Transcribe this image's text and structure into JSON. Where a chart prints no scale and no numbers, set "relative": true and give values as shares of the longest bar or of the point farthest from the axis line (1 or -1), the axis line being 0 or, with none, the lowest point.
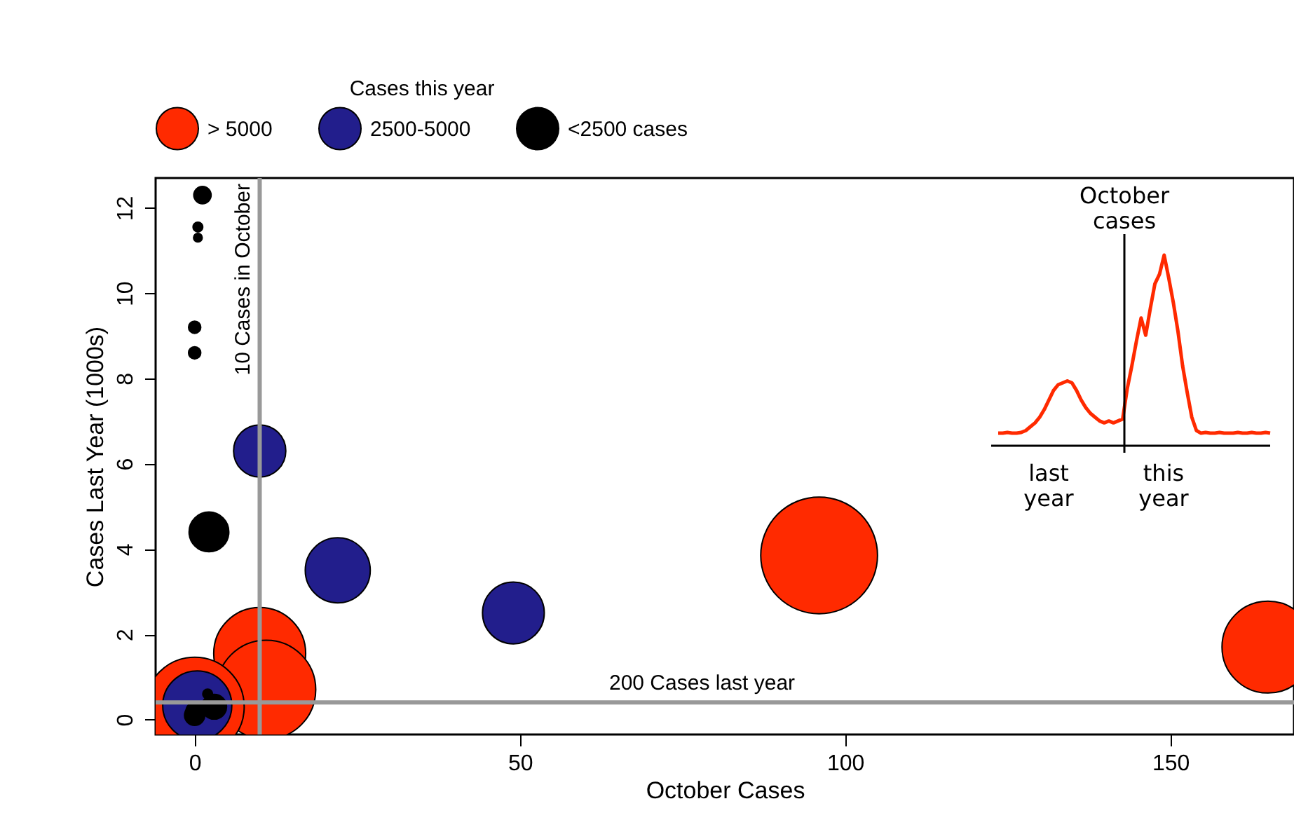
{
  "chart_data": [
    {
      "type": "bubble",
      "xlabel": "October Cases",
      "ylabel": "Cases Last Year (1000s)",
      "legend_title": "Cases this year",
      "legend": "top",
      "grid": false,
      "xlim": [
        -6,
        169
      ],
      "ylim": [
        -0.35,
        12.7
      ],
      "xticks": [
        0,
        50,
        100,
        150
      ],
      "yticks": [
        0,
        2,
        4,
        6,
        8,
        10,
        12
      ],
      "ref_lines": [
        {
          "axis": "x",
          "value": 10,
          "label": "10 Cases in October",
          "color": "#999999"
        },
        {
          "axis": "y",
          "value": 0.4,
          "label": "200 Cases last year",
          "color": "#999999"
        }
      ],
      "series": [
        {
          "name": "> 5000",
          "color": "#ff2a00",
          "x": [
            96,
            165,
            10,
            11,
            0
          ],
          "values": [
            3.85,
            1.7,
            1.55,
            0.7,
            0.3
          ],
          "sizes": [
            1,
            0.62,
            0.62,
            0.72,
            0.72
          ]
        },
        {
          "name": "2500-5000",
          "color": "#221e8c",
          "x": [
            10,
            22,
            49,
            0.4
          ],
          "values": [
            6.3,
            3.5,
            2.5,
            0.33
          ],
          "sizes": [
            0.2,
            0.31,
            0.28,
            0.35
          ]
        },
        {
          "name": "<2500 cases",
          "color": "#000000",
          "x": [
            1.2,
            0.5,
            0.5,
            0,
            0,
            2.2,
            2,
            3,
            0,
            0
          ],
          "values": [
            12.3,
            11.55,
            11.3,
            9.2,
            8.6,
            4.4,
            0.6,
            0.3,
            0.1,
            0.2
          ],
          "sizes": [
            0.022,
            0.007,
            0.0055,
            0.011,
            0.011,
            0.116,
            0.007,
            0.045,
            0.03,
            0.022
          ]
        }
      ]
    },
    {
      "type": "line",
      "relative": true,
      "categories": [
        null,
        null,
        null,
        null,
        null,
        null,
        null,
        null,
        null,
        null,
        null,
        null,
        null,
        null,
        null,
        null,
        null,
        null,
        null,
        null,
        null,
        null,
        null,
        null,
        null,
        null,
        null,
        null,
        null,
        null,
        null,
        null,
        null,
        null,
        null,
        null,
        null,
        null,
        null,
        null,
        null,
        null,
        null,
        null,
        null,
        null,
        null,
        null,
        null,
        null,
        null,
        null,
        null,
        null,
        null,
        null,
        null,
        null,
        null,
        null
      ],
      "annotations": [
        "October cases",
        "last year",
        "this year"
      ],
      "series": [
        {
          "color": "#ff2a00",
          "values": [
            0.066,
            0.066,
            0.07,
            0.066,
            0.066,
            0.07,
            0.08,
            0.1,
            0.12,
            0.15,
            0.19,
            0.24,
            0.29,
            0.32,
            0.33,
            0.34,
            0.33,
            0.29,
            0.24,
            0.2,
            0.17,
            0.15,
            0.13,
            0.12,
            0.13,
            0.12,
            0.13,
            0.14,
            0.3,
            0.42,
            0.55,
            0.67,
            0.58,
            0.72,
            0.85,
            0.9,
            1.0,
            0.88,
            0.75,
            0.6,
            0.42,
            0.28,
            0.15,
            0.08,
            0.066,
            0.07,
            0.066,
            0.066,
            0.07,
            0.066,
            0.066,
            0.066,
            0.07,
            0.066,
            0.066,
            0.07,
            0.066,
            0.066,
            0.07,
            0.066
          ]
        }
      ]
    }
  ]
}
